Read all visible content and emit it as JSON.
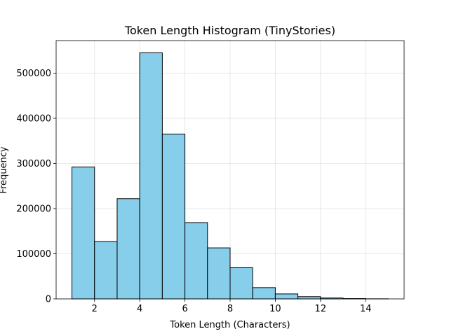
{
  "chart_data": {
    "type": "bar",
    "subtype": "histogram",
    "title": "Token Length Histogram (TinyStories)",
    "xlabel": "Token Length (Characters)",
    "ylabel": "Frequency",
    "bin_edges": [
      1,
      2,
      3,
      4,
      5,
      6,
      7,
      8,
      9,
      10,
      11,
      12,
      13,
      14,
      15
    ],
    "values": [
      292000,
      127000,
      222000,
      545000,
      365000,
      169000,
      113000,
      69000,
      25000,
      11000,
      5000,
      2000,
      700,
      200
    ],
    "xlim": [
      0.3,
      15.7
    ],
    "ylim": [
      0,
      572000
    ],
    "xticks": [
      2,
      4,
      6,
      8,
      10,
      12,
      14
    ],
    "yticks": [
      0,
      100000,
      200000,
      300000,
      400000,
      500000
    ],
    "xtick_labels": [
      "2",
      "4",
      "6",
      "8",
      "10",
      "12",
      "14"
    ],
    "ytick_labels": [
      "0",
      "100000",
      "200000",
      "300000",
      "400000",
      "500000"
    ],
    "grid": true,
    "bar_color": "#87ceeb",
    "edge_color": "#000000"
  }
}
